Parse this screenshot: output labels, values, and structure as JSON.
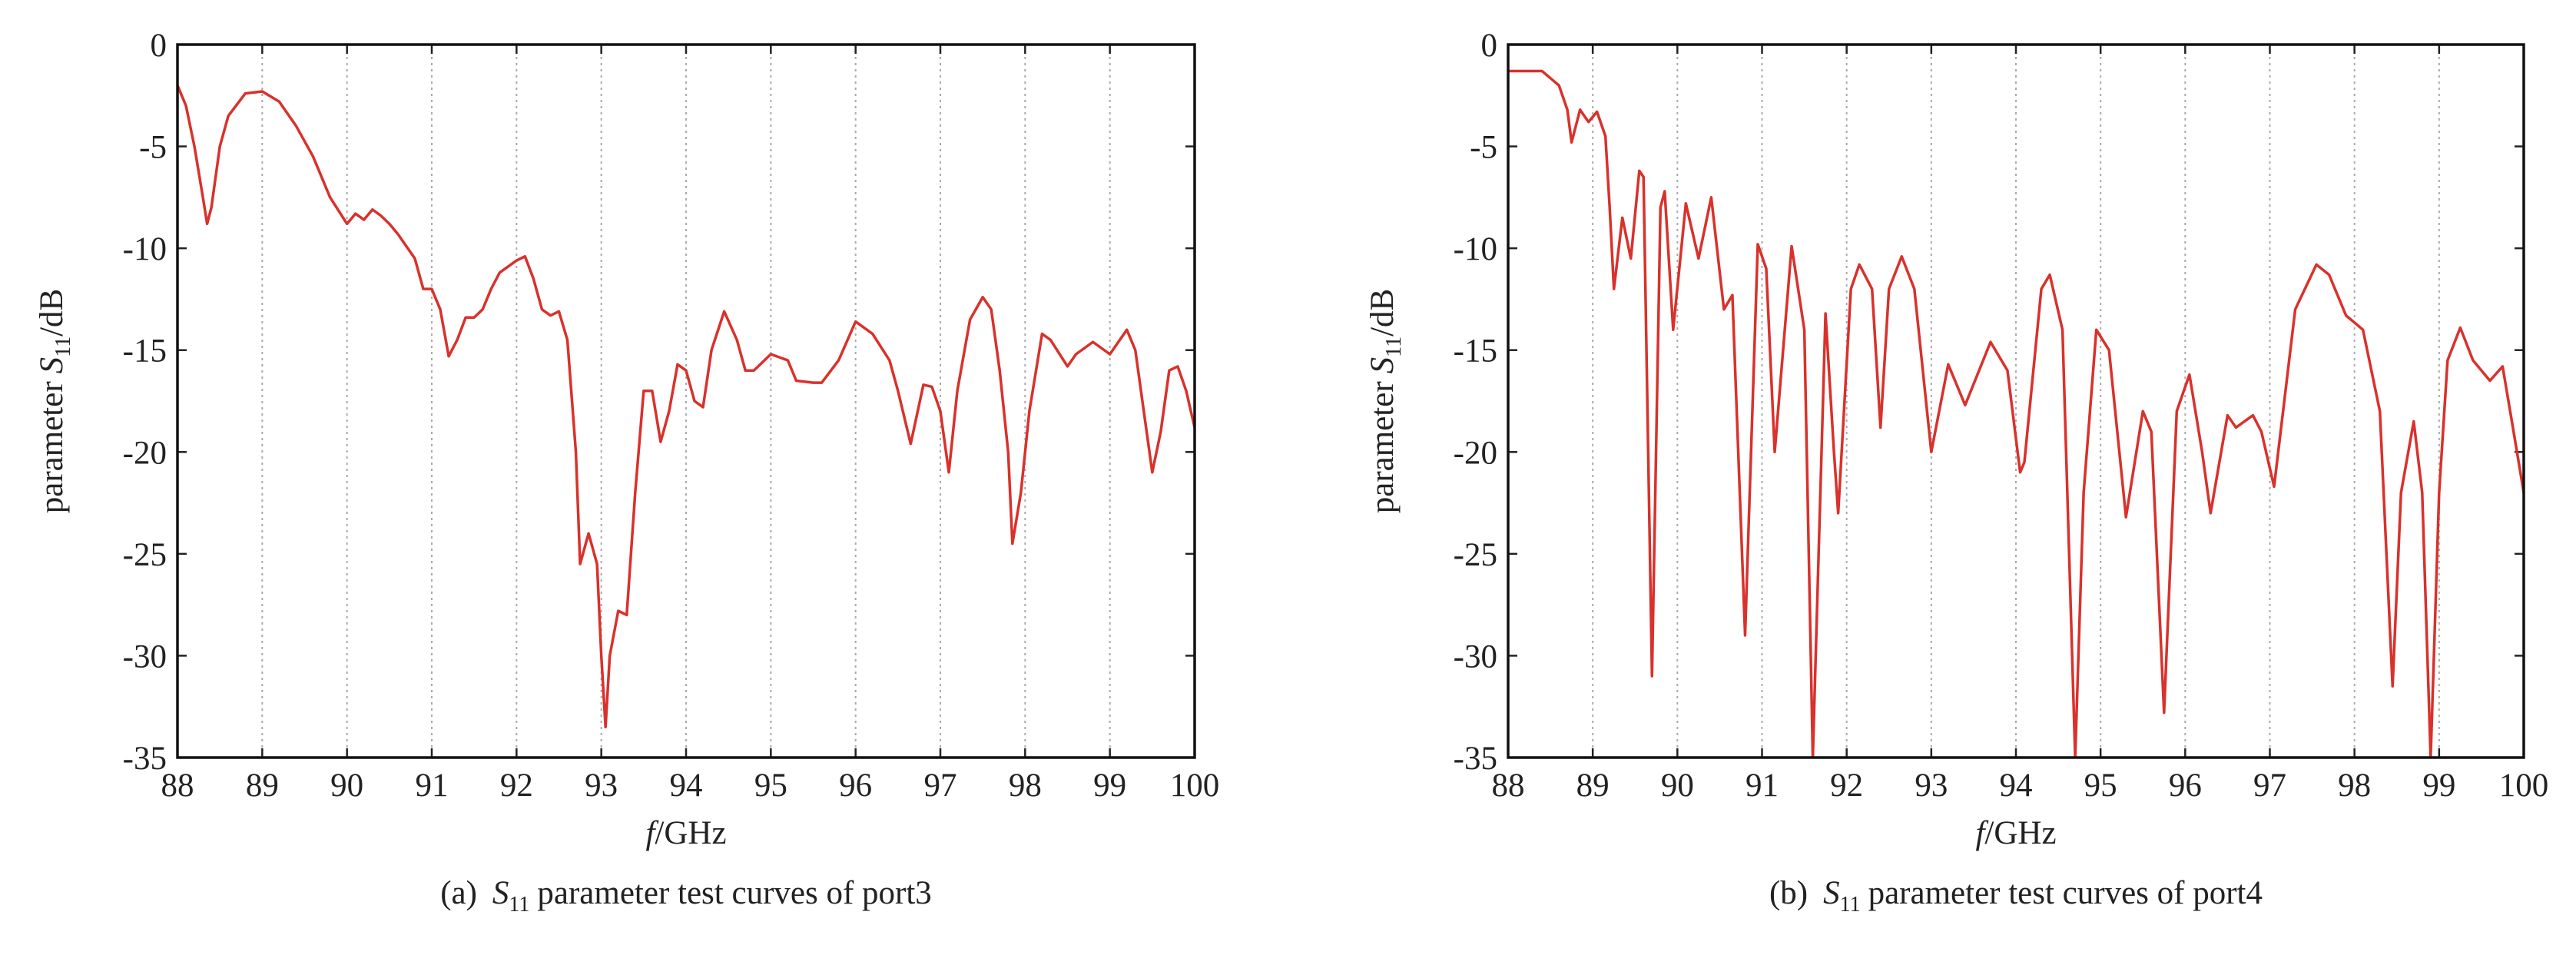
{
  "chart_data": [
    {
      "type": "line",
      "caption": {
        "label": "(a)",
        "symbol": "S",
        "subscript": "11",
        "text": "parameter test curves of port3"
      },
      "xlabel": {
        "symbol": "f",
        "unit": "/GHz"
      },
      "ylabel": {
        "text": "parameter",
        "symbol": "S",
        "subscript": "11",
        "unit": "/dB"
      },
      "xlim": [
        88,
        100
      ],
      "ylim": [
        -35,
        0
      ],
      "xticks": [
        88,
        89,
        90,
        91,
        92,
        93,
        94,
        95,
        96,
        97,
        98,
        99,
        100
      ],
      "yticks": [
        0,
        -5,
        -10,
        -15,
        -20,
        -25,
        -30,
        -35
      ],
      "grid": true,
      "color": "#d9312b",
      "x": [
        88,
        88.1,
        88.2,
        88.3,
        88.35,
        88.4,
        88.5,
        88.6,
        88.8,
        89,
        89.2,
        89.4,
        89.6,
        89.8,
        90,
        90.1,
        90.2,
        90.3,
        90.4,
        90.5,
        90.6,
        90.8,
        90.9,
        91,
        91.1,
        91.2,
        91.3,
        91.4,
        91.5,
        91.6,
        91.7,
        91.8,
        92,
        92.1,
        92.2,
        92.3,
        92.4,
        92.5,
        92.6,
        92.7,
        92.75,
        92.85,
        92.95,
        93,
        93.05,
        93.1,
        93.2,
        93.3,
        93.4,
        93.5,
        93.6,
        93.7,
        93.8,
        93.9,
        94,
        94.1,
        94.2,
        94.3,
        94.45,
        94.6,
        94.7,
        94.8,
        95,
        95.2,
        95.3,
        95.5,
        95.6,
        95.8,
        96,
        96.2,
        96.4,
        96.5,
        96.65,
        96.8,
        96.9,
        97,
        97.1,
        97.2,
        97.35,
        97.5,
        97.6,
        97.7,
        97.8,
        97.85,
        97.95,
        98.05,
        98.2,
        98.3,
        98.5,
        98.6,
        98.8,
        99,
        99.2,
        99.3,
        99.4,
        99.5,
        99.6,
        99.7,
        99.8,
        99.9,
        100
      ],
      "values": [
        -2,
        -3,
        -5,
        -7.5,
        -8.8,
        -8,
        -5,
        -3.5,
        -2.4,
        -2.3,
        -2.8,
        -4,
        -5.5,
        -7.5,
        -8.8,
        -8.3,
        -8.6,
        -8.1,
        -8.4,
        -8.8,
        -9.3,
        -10.5,
        -12,
        -12,
        -13,
        -15.3,
        -14.5,
        -13.4,
        -13.4,
        -13,
        -12,
        -11.2,
        -10.6,
        -10.4,
        -11.5,
        -13,
        -13.3,
        -13.1,
        -14.5,
        -20,
        -25.5,
        -24,
        -25.5,
        -30,
        -33.5,
        -30,
        -27.8,
        -28,
        -22,
        -17,
        -17,
        -19.5,
        -18,
        -15.7,
        -16,
        -17.5,
        -17.8,
        -15,
        -13.1,
        -14.5,
        -16,
        -16,
        -15.2,
        -15.5,
        -16.5,
        -16.6,
        -16.6,
        -15.5,
        -13.6,
        -14.2,
        -15.5,
        -17,
        -19.6,
        -16.7,
        -16.8,
        -18,
        -21,
        -17,
        -13.5,
        -12.4,
        -13,
        -16,
        -20,
        -24.5,
        -22,
        -18,
        -14.2,
        -14.5,
        -15.8,
        -15.2,
        -14.6,
        -15.2,
        -14,
        -15,
        -18,
        -21,
        -19,
        -16,
        -15.8,
        -17,
        -18.8
      ]
    },
    {
      "type": "line",
      "caption": {
        "label": "(b)",
        "symbol": "S",
        "subscript": "11",
        "text": "parameter test curves of port4"
      },
      "xlabel": {
        "symbol": "f",
        "unit": "/GHz"
      },
      "ylabel": {
        "text": "parameter",
        "symbol": "S",
        "subscript": "11",
        "unit": "/dB"
      },
      "xlim": [
        88,
        100
      ],
      "ylim": [
        -35,
        0
      ],
      "xticks": [
        88,
        89,
        90,
        91,
        92,
        93,
        94,
        95,
        96,
        97,
        98,
        99,
        100
      ],
      "yticks": [
        0,
        -5,
        -10,
        -15,
        -20,
        -25,
        -30,
        -35
      ],
      "grid": true,
      "color": "#d9312b",
      "x": [
        88,
        88.4,
        88.6,
        88.7,
        88.75,
        88.85,
        88.95,
        89.05,
        89.15,
        89.2,
        89.25,
        89.35,
        89.45,
        89.55,
        89.6,
        89.7,
        89.8,
        89.85,
        89.95,
        90.1,
        90.25,
        90.4,
        90.55,
        90.65,
        90.8,
        90.95,
        91.05,
        91.15,
        91.35,
        91.5,
        91.6,
        91.75,
        91.85,
        91.9,
        92.05,
        92.15,
        92.3,
        92.4,
        92.5,
        92.65,
        92.8,
        92.95,
        93,
        93.2,
        93.4,
        93.7,
        93.9,
        94.05,
        94.1,
        94.3,
        94.4,
        94.55,
        94.7,
        94.8,
        94.95,
        95.1,
        95.3,
        95.5,
        95.6,
        95.75,
        95.9,
        96.05,
        96.2,
        96.3,
        96.5,
        96.6,
        96.8,
        96.9,
        97.05,
        97.3,
        97.55,
        97.7,
        97.9,
        98.1,
        98.3,
        98.45,
        98.55,
        98.7,
        98.8,
        98.9,
        99,
        99.1,
        99.25,
        99.4,
        99.6,
        99.75,
        99.9,
        100
      ],
      "values": [
        -1.3,
        -1.3,
        -2,
        -3.2,
        -4.8,
        -3.2,
        -3.8,
        -3.3,
        -4.5,
        -8,
        -12,
        -8.5,
        -10.5,
        -6.2,
        -6.5,
        -31,
        -8,
        -7.2,
        -14,
        -7.8,
        -10.5,
        -7.5,
        -13,
        -12.3,
        -29,
        -9.8,
        -11,
        -20,
        -9.9,
        -14,
        -35,
        -13.2,
        -20,
        -23,
        -12,
        -10.8,
        -12,
        -18.8,
        -12,
        -10.4,
        -12,
        -18,
        -20,
        -15.7,
        -17.7,
        -14.6,
        -16,
        -21,
        -20.5,
        -12,
        -11.3,
        -14,
        -35,
        -22,
        -14,
        -15,
        -23.2,
        -18,
        -19,
        -32.8,
        -18,
        -16.2,
        -20,
        -23,
        -18.2,
        -18.8,
        -18.2,
        -19,
        -21.7,
        -13,
        -10.8,
        -11.3,
        -13.3,
        -14,
        -18,
        -31.5,
        -22,
        -18.5,
        -22,
        -35,
        -22,
        -15.5,
        -13.9,
        -15.5,
        -16.5,
        -15.8,
        -19.5,
        -22
      ]
    }
  ]
}
